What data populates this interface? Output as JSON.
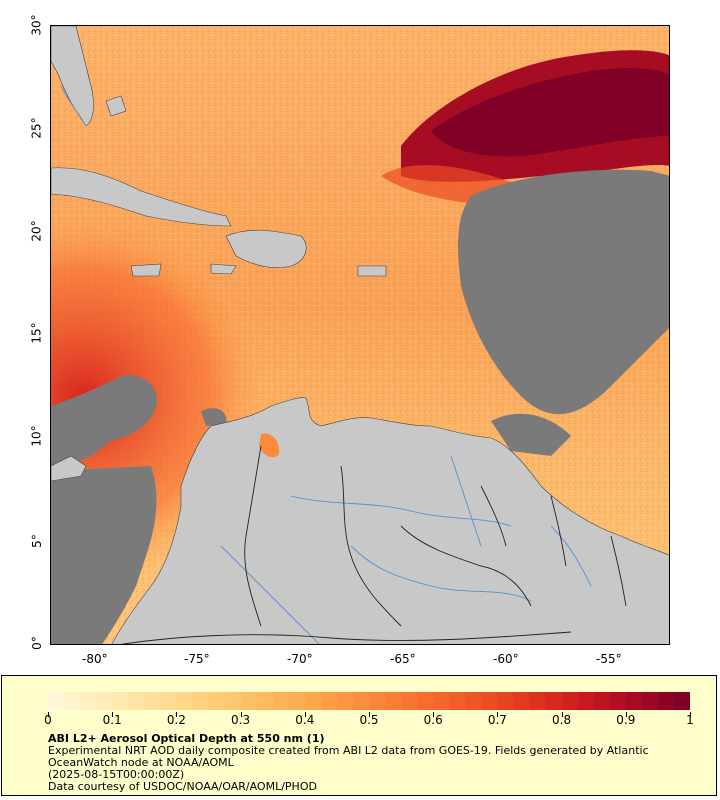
{
  "map": {
    "title": "ABI L2+ Aerosol Optical Depth at 550 nm (1)",
    "lat_labels": [
      "30°",
      "25°",
      "20°",
      "15°",
      "10°",
      "5°",
      "0°"
    ],
    "lon_labels": [
      "-80°",
      "-75°",
      "-70°",
      "-65°",
      "-60°",
      "-55°"
    ],
    "lat_range": [
      0,
      30
    ],
    "lon_range": [
      -82.2,
      -52.2
    ],
    "colors": {
      "land": "#c8c8c8",
      "no_data": "#7a7a7a",
      "river": "#5a8fcf",
      "border": "#222222"
    }
  },
  "legend": {
    "ticks": [
      "0",
      "0.1",
      "0.2",
      "0.3",
      "0.4",
      "0.5",
      "0.6",
      "0.7",
      "0.8",
      "0.9",
      "1"
    ],
    "colorscale": [
      "#fff6d5",
      "#ffe9b0",
      "#fed98a",
      "#fec268",
      "#fda94e",
      "#fc8a3b",
      "#f86a2e",
      "#ec4a24",
      "#d8261e",
      "#b40d22",
      "#800026"
    ],
    "title": "ABI L2+ Aerosol Optical Depth at 550 nm (1)",
    "line1": "Experimental NRT AOD daily composite created from ABI L2 data from GOES-19. Fields generated by Atlantic OceanWatch node at NOAA/AOML",
    "line2": "(2025-08-15T00:00:00Z)",
    "line3": "Data courtesy of USDOC/NOAA/OAR/AOML/PHOD"
  }
}
